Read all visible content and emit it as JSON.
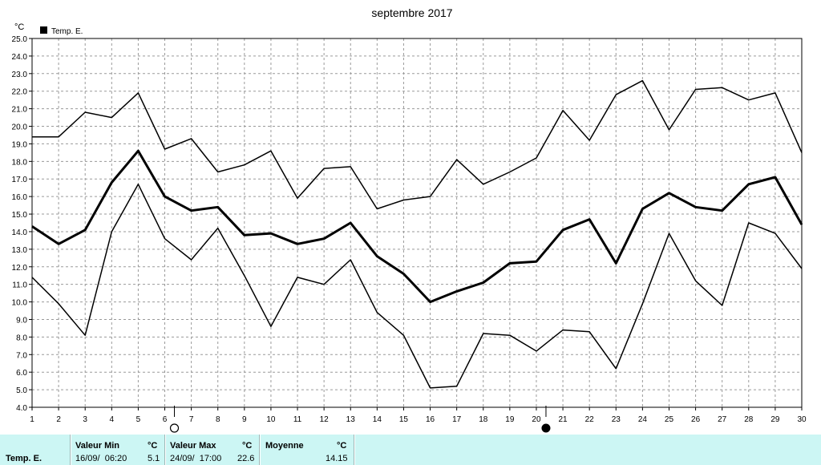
{
  "chart_data": {
    "type": "line",
    "title": "septembre 2017",
    "unit_label": "°C",
    "legend": "Temp. E.",
    "legend_position": "top-left",
    "grid": true,
    "ylim": [
      4.0,
      25.0
    ],
    "y_ticks": [
      "4.0",
      "5.0",
      "6.0",
      "7.0",
      "8.0",
      "9.0",
      "10.0",
      "11.0",
      "12.0",
      "13.0",
      "14.0",
      "15.0",
      "16.0",
      "17.0",
      "18.0",
      "19.0",
      "20.0",
      "21.0",
      "22.0",
      "23.0",
      "24.0",
      "25.0"
    ],
    "x": [
      "1",
      "2",
      "3",
      "4",
      "5",
      "6",
      "7",
      "8",
      "9",
      "10",
      "11",
      "12",
      "13",
      "14",
      "15",
      "16",
      "17",
      "18",
      "19",
      "20",
      "21",
      "22",
      "23",
      "24",
      "25",
      "26",
      "27",
      "28",
      "29",
      "30"
    ],
    "series": [
      {
        "role": "max",
        "values": [
          19.4,
          19.4,
          20.8,
          20.5,
          21.9,
          18.7,
          19.3,
          17.4,
          17.8,
          18.6,
          15.9,
          17.6,
          17.7,
          15.3,
          15.8,
          16.0,
          18.1,
          16.7,
          17.4,
          18.2,
          20.9,
          19.2,
          21.8,
          22.6,
          19.8,
          22.1,
          22.2,
          21.5,
          21.9,
          18.5
        ]
      },
      {
        "role": "mean",
        "values": [
          14.3,
          13.3,
          14.1,
          16.8,
          18.6,
          16.0,
          15.2,
          15.4,
          13.8,
          13.9,
          13.3,
          13.6,
          14.5,
          12.6,
          11.6,
          10.0,
          10.6,
          11.1,
          12.2,
          12.3,
          14.1,
          14.7,
          12.2,
          15.3,
          16.2,
          15.4,
          15.2,
          16.7,
          17.1,
          14.4
        ]
      },
      {
        "role": "min",
        "values": [
          11.4,
          9.9,
          8.1,
          14.0,
          16.7,
          13.6,
          12.4,
          14.2,
          11.5,
          8.6,
          11.4,
          11.0,
          12.4,
          9.4,
          8.1,
          5.1,
          5.2,
          8.2,
          8.1,
          7.2,
          8.4,
          8.3,
          6.2,
          9.9,
          13.9,
          11.2,
          9.8,
          14.5,
          13.9,
          11.9
        ]
      }
    ],
    "moon_phases": [
      {
        "day": "6",
        "phase": "full moon"
      },
      {
        "day": "20",
        "phase": "new moon"
      }
    ]
  },
  "footer": {
    "row_label": "Temp. E.",
    "min": {
      "label": "Valeur Min",
      "unit": "°C",
      "date": "16/09/  06:20",
      "value": "5.1"
    },
    "max": {
      "label": "Valeur Max",
      "unit": "°C",
      "date": "24/09/  17:00",
      "value": "22.6"
    },
    "avg": {
      "label": "Moyenne",
      "unit": "°C",
      "value": "14.15"
    }
  }
}
